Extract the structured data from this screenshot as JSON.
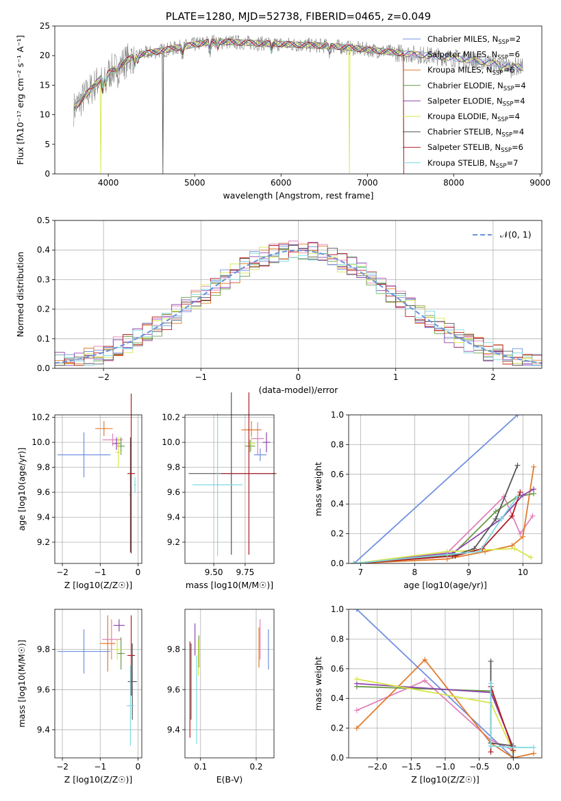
{
  "colors": {
    "Chabrier MILES": "#6e8fe0",
    "Salpeter MILES": "#e07fb8",
    "Kroupa MILES": "#e07a2a",
    "Chabrier ELODIE": "#6a9a45",
    "Salpeter ELODIE": "#8e44ad",
    "Kroupa ELODIE": "#d6e64a",
    "Chabrier STELIB": "#555555",
    "Salpeter STELIB": "#b01c22",
    "Kroupa STELIB": "#7fd8e2",
    "gauss": "#6a8fdc",
    "grid": "#b0b0b0"
  },
  "legend_entries": [
    {
      "name": "Chabrier MILES",
      "nssp": "2"
    },
    {
      "name": "Salpeter MILES",
      "nssp": "6"
    },
    {
      "name": "Kroupa MILES",
      "nssp": "6"
    },
    {
      "name": "Chabrier ELODIE",
      "nssp": "4"
    },
    {
      "name": "Salpeter ELODIE",
      "nssp": "4"
    },
    {
      "name": "Kroupa ELODIE",
      "nssp": "4"
    },
    {
      "name": "Chabrier STELIB",
      "nssp": "4"
    },
    {
      "name": "Salpeter STELIB",
      "nssp": "6"
    },
    {
      "name": "Kroupa STELIB",
      "nssp": "7"
    }
  ],
  "chart_data": [
    {
      "id": "spectrum",
      "type": "line",
      "title": "PLATE=1280, MJD=52738, FIBERID=0465, z=0.049",
      "xlabel": "wavelength [Angstrom, rest frame]",
      "ylabel": "Flux [fλ10⁻¹⁷ erg cm⁻² s⁻¹ A⁻¹]",
      "xlim": [
        3380,
        9020
      ],
      "ylim": [
        0,
        25
      ],
      "xticks": [
        4000,
        5000,
        6000,
        7000,
        8000,
        9000
      ],
      "yticks": [
        0,
        5,
        10,
        15,
        20,
        25
      ],
      "data_range": [
        3600,
        8800
      ],
      "legend": "top-right",
      "grid": false
    },
    {
      "id": "residuals",
      "type": "histogram",
      "xlabel": "(data-model)/error",
      "ylabel": "Normed distribution",
      "xlim": [
        -2.5,
        2.5
      ],
      "ylim": [
        0,
        0.5
      ],
      "xticks": [
        -2,
        -1,
        0,
        1,
        2
      ],
      "yticks": [
        0.0,
        0.1,
        0.2,
        0.3,
        0.4,
        0.5
      ],
      "bin_width": 0.1,
      "gauss_label": "𝒩(0, 1)",
      "legend": "top-right",
      "grid": true
    },
    {
      "id": "age-vs-Z",
      "type": "errorbar",
      "xlabel": "Z [log10(Z/Z☉)]",
      "ylabel": "age  [log10(age/yr)]",
      "xlim": [
        -2.2,
        0.1
      ],
      "ylim": [
        9.03,
        10.22
      ],
      "xticks": [
        -2,
        -1,
        0
      ],
      "yticks": [
        9.2,
        9.4,
        9.6,
        9.8,
        10.0,
        10.2
      ],
      "points": [
        {
          "s": "Chabrier MILES",
          "x": -1.43,
          "xerr": 0.7,
          "y": 9.9,
          "yerr": 0.18
        },
        {
          "s": "Salpeter MILES",
          "x": -0.67,
          "xerr": 0.27,
          "y": 10.02,
          "yerr": 0.05
        },
        {
          "s": "Kroupa MILES",
          "x": -0.9,
          "xerr": 0.23,
          "y": 10.11,
          "yerr": 0.06
        },
        {
          "s": "Chabrier ELODIE",
          "x": -0.45,
          "xerr": 0.1,
          "y": 9.97,
          "yerr": 0.07
        },
        {
          "s": "Salpeter ELODIE",
          "x": -0.57,
          "xerr": 0.1,
          "y": 9.99,
          "yerr": 0.05
        },
        {
          "s": "Kroupa ELODIE",
          "x": -0.52,
          "xerr": 0.08,
          "y": 9.92,
          "yerr": 0.12
        },
        {
          "s": "Chabrier STELIB",
          "x": -0.2,
          "xerr": 0.02,
          "y": 9.58,
          "yerr": 0.46
        },
        {
          "s": "Salpeter STELIB",
          "x": -0.18,
          "xerr": 0.1,
          "y": 9.75,
          "yerr": 0.64
        },
        {
          "s": "Kroupa STELIB",
          "x": -0.08,
          "xerr": 0.03,
          "y": 9.66,
          "yerr": 0.06
        }
      ]
    },
    {
      "id": "age-vs-mass",
      "type": "errorbar",
      "xlabel": "mass [log10(M/M☉)]",
      "ylabel": "",
      "xlim": [
        9.27,
        9.98
      ],
      "ylim": [
        9.03,
        10.22
      ],
      "xticks": [
        9.5,
        9.75
      ],
      "xticklabels": [
        "9.50",
        "9.75"
      ],
      "yticks": [
        9.2,
        9.4,
        9.6,
        9.8,
        10.0,
        10.2
      ],
      "points": [
        {
          "s": "Chabrier MILES",
          "x": 9.87,
          "xerr": 0.05,
          "y": 9.9,
          "yerr": 0.05
        },
        {
          "s": "Salpeter MILES",
          "x": 9.85,
          "xerr": 0.05,
          "y": 10.03,
          "yerr": 0.13
        },
        {
          "s": "Kroupa MILES",
          "x": 9.8,
          "xerr": 0.08,
          "y": 10.1,
          "yerr": 0.07
        },
        {
          "s": "Chabrier ELODIE",
          "x": 9.79,
          "xerr": 0.04,
          "y": 9.97,
          "yerr": 0.05
        },
        {
          "s": "Salpeter ELODIE",
          "x": 9.92,
          "xerr": 0.03,
          "y": 10.0,
          "yerr": 0.08
        },
        {
          "s": "Kroupa ELODIE",
          "x": 9.8,
          "xerr": 0.03,
          "y": 9.99,
          "yerr": 0.06
        },
        {
          "s": "Chabrier STELIB",
          "x": 9.64,
          "xerr": 0.34,
          "y": 9.75,
          "yerr": 0.65
        },
        {
          "s": "Salpeter STELIB",
          "x": 9.78,
          "xerr": 0.22,
          "y": 9.75,
          "yerr": 0.65
        },
        {
          "s": "Kroupa STELIB",
          "x": 9.53,
          "xerr": 0.2,
          "y": 9.66,
          "yerr": 0.57
        }
      ]
    },
    {
      "id": "weight-vs-age",
      "type": "line",
      "xlabel": "age  [log10(age/yr)]",
      "ylabel": "mass weight",
      "xlim": [
        6.78,
        10.35
      ],
      "ylim": [
        0,
        1
      ],
      "xticks": [
        7,
        8,
        9,
        10
      ],
      "yticks": [
        0.0,
        0.2,
        0.4,
        0.6,
        0.8,
        1.0
      ],
      "series": [
        {
          "s": "Chabrier MILES",
          "x": [
            6.88,
            9.9
          ],
          "y": [
            0.0,
            1.0
          ]
        },
        {
          "s": "Salpeter MILES",
          "x": [
            6.88,
            8.6,
            9.65,
            9.95,
            10.18
          ],
          "y": [
            0.0,
            0.07,
            0.45,
            0.2,
            0.32
          ]
        },
        {
          "s": "Kroupa MILES",
          "x": [
            6.88,
            8.6,
            9.3,
            9.8,
            10.0,
            10.2
          ],
          "y": [
            0.0,
            0.03,
            0.08,
            0.12,
            0.18,
            0.65
          ]
        },
        {
          "s": "Chabrier ELODIE",
          "x": [
            6.88,
            8.7,
            9.5,
            9.9,
            10.2
          ],
          "y": [
            0.0,
            0.06,
            0.35,
            0.45,
            0.47
          ]
        },
        {
          "s": "Salpeter ELODIE",
          "x": [
            6.88,
            8.7,
            9.6,
            10.0,
            10.2
          ],
          "y": [
            0.0,
            0.07,
            0.3,
            0.46,
            0.5
          ]
        },
        {
          "s": "Kroupa ELODIE",
          "x": [
            6.88,
            8.6,
            9.85,
            10.15
          ],
          "y": [
            0.0,
            0.08,
            0.1,
            0.04
          ]
        },
        {
          "s": "Chabrier STELIB",
          "x": [
            6.88,
            8.7,
            9.1,
            9.5,
            9.9
          ],
          "y": [
            0.0,
            0.05,
            0.1,
            0.3,
            0.66
          ]
        },
        {
          "s": "Salpeter STELIB",
          "x": [
            6.88,
            8.75,
            9.25,
            9.8,
            9.95
          ],
          "y": [
            0.0,
            0.05,
            0.1,
            0.32,
            0.48
          ]
        },
        {
          "s": "Kroupa STELIB",
          "x": [
            6.88,
            8.6,
            9.2,
            9.6,
            9.9
          ],
          "y": [
            0.0,
            0.06,
            0.08,
            0.3,
            0.45
          ]
        }
      ]
    },
    {
      "id": "mass-vs-Z",
      "type": "errorbar",
      "xlabel": "Z [log10(Z/Z☉)]",
      "ylabel": "mass [log10(M/M☉)]",
      "xlim": [
        -2.2,
        0.1
      ],
      "ylim": [
        9.26,
        10.0
      ],
      "xticks": [
        -2,
        -1,
        0
      ],
      "yticks": [
        9.4,
        9.6,
        9.8
      ],
      "points": [
        {
          "s": "Chabrier MILES",
          "x": -1.43,
          "xerr": 0.7,
          "y": 9.79,
          "yerr": 0.11
        },
        {
          "s": "Salpeter MILES",
          "x": -0.7,
          "xerr": 0.25,
          "y": 9.85,
          "yerr": 0.1
        },
        {
          "s": "Kroupa MILES",
          "x": -0.8,
          "xerr": 0.2,
          "y": 9.83,
          "yerr": 0.14
        },
        {
          "s": "Chabrier ELODIE",
          "x": -0.45,
          "xerr": 0.1,
          "y": 9.78,
          "yerr": 0.08
        },
        {
          "s": "Salpeter ELODIE",
          "x": -0.5,
          "xerr": 0.15,
          "y": 9.92,
          "yerr": 0.03
        },
        {
          "s": "Kroupa ELODIE",
          "x": -0.55,
          "xerr": 0.1,
          "y": 9.8,
          "yerr": 0.05
        },
        {
          "s": "Chabrier STELIB",
          "x": -0.15,
          "xerr": 0.12,
          "y": 9.64,
          "yerr": 0.19
        },
        {
          "s": "Salpeter STELIB",
          "x": -0.18,
          "xerr": 0.1,
          "y": 9.77,
          "yerr": 0.2
        },
        {
          "s": "Kroupa STELIB",
          "x": -0.2,
          "xerr": 0.1,
          "y": 9.52,
          "yerr": 0.2
        }
      ]
    },
    {
      "id": "mass-vs-EBV",
      "type": "errorbar",
      "xlabel": "E(B-V)",
      "ylabel": "",
      "xlim": [
        0.072,
        0.232
      ],
      "ylim": [
        9.26,
        10.0
      ],
      "xticks": [
        0.1,
        0.2
      ],
      "yticks": [
        9.4,
        9.6,
        9.8
      ],
      "points": [
        {
          "s": "Chabrier MILES",
          "x": 0.222,
          "xerr": 0,
          "y": 9.8,
          "yerr": 0.1
        },
        {
          "s": "Salpeter MILES",
          "x": 0.207,
          "xerr": 0,
          "y": 9.85,
          "yerr": 0.1
        },
        {
          "s": "Kroupa MILES",
          "x": 0.205,
          "xerr": 0,
          "y": 9.81,
          "yerr": 0.1
        },
        {
          "s": "Chabrier ELODIE",
          "x": 0.097,
          "xerr": 0,
          "y": 9.79,
          "yerr": 0.08
        },
        {
          "s": "Salpeter ELODIE",
          "x": 0.09,
          "xerr": 0,
          "y": 9.85,
          "yerr": 0.08
        },
        {
          "s": "Kroupa ELODIE",
          "x": 0.096,
          "xerr": 0,
          "y": 9.76,
          "yerr": 0.09
        },
        {
          "s": "Chabrier STELIB",
          "x": 0.083,
          "xerr": 0,
          "y": 9.64,
          "yerr": 0.19
        },
        {
          "s": "Salpeter STELIB",
          "x": 0.081,
          "xerr": 0,
          "y": 9.6,
          "yerr": 0.24
        },
        {
          "s": "Kroupa STELIB",
          "x": 0.093,
          "xerr": 0,
          "y": 9.55,
          "yerr": 0.22
        }
      ]
    },
    {
      "id": "weight-vs-Z",
      "type": "line",
      "xlabel": "Z [log10(Z/Z☉)]",
      "ylabel": "mass weight",
      "xlim": [
        -2.42,
        0.42
      ],
      "ylim": [
        0,
        1
      ],
      "xticks": [
        -2.0,
        -1.5,
        -1.0,
        -0.5,
        0.0
      ],
      "xticklabels": [
        "−2.0",
        "−1.5",
        "−1.0",
        "−0.5",
        "0.0"
      ],
      "yticks": [
        0.0,
        0.2,
        0.4,
        0.6,
        0.8,
        1.0
      ],
      "series": [
        {
          "s": "Chabrier MILES",
          "x": [
            -2.3,
            0.0
          ],
          "y": [
            1.0,
            0.0
          ]
        },
        {
          "s": "Salpeter MILES",
          "x": [
            -2.3,
            -1.3,
            -0.33,
            0.0
          ],
          "y": [
            0.32,
            0.52,
            0.12,
            0.05
          ]
        },
        {
          "s": "Kroupa MILES",
          "x": [
            -2.3,
            -1.3,
            -0.33,
            0.0,
            0.3
          ],
          "y": [
            0.2,
            0.66,
            0.1,
            0.0,
            0.03
          ]
        },
        {
          "s": "Chabrier ELODIE",
          "x": [
            -2.3,
            -0.33,
            0.0
          ],
          "y": [
            0.48,
            0.45,
            0.07
          ]
        },
        {
          "s": "Salpeter ELODIE",
          "x": [
            -2.3,
            -0.33,
            0.0
          ],
          "y": [
            0.5,
            0.44,
            0.07
          ]
        },
        {
          "s": "Kroupa ELODIE",
          "x": [
            -2.3,
            -0.33,
            0.0
          ],
          "y": [
            0.53,
            0.37,
            0.04
          ]
        },
        {
          "s": "Chabrier STELIB",
          "x": [
            -0.33,
            -0.33,
            0.0,
            0.0
          ],
          "y": [
            0.65,
            0.1,
            0.08,
            0.0
          ]
        },
        {
          "s": "Salpeter STELIB",
          "x": [
            -0.33,
            -0.33,
            0.0
          ],
          "y": [
            0.04,
            0.48,
            0.05
          ]
        },
        {
          "s": "Kroupa STELIB",
          "x": [
            -0.33,
            -0.33,
            0.0,
            0.3
          ],
          "y": [
            0.5,
            0.08,
            0.07,
            0.07
          ]
        }
      ]
    }
  ]
}
